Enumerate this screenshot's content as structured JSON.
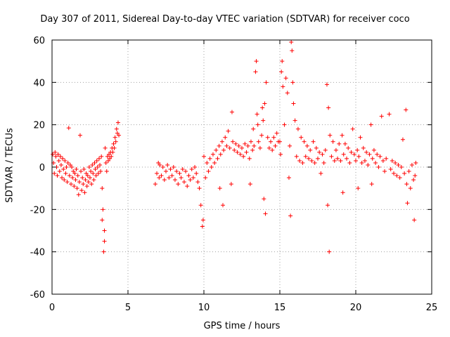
{
  "chart_data": {
    "type": "scatter",
    "title": "Day 307 of 2011, Sidereal Day-to-day VTEC variation (SDTVAR) for receiver coco",
    "xlabel": "GPS time / hours",
    "ylabel": "SDTVAR / TECUs",
    "xlim": [
      0,
      25
    ],
    "ylim": [
      -60,
      60
    ],
    "xticks": [
      0,
      5,
      10,
      15,
      20,
      25
    ],
    "yticks": [
      -60,
      -40,
      -20,
      0,
      20,
      40,
      60
    ],
    "grid": true,
    "marker": "+",
    "color": "#ff0000",
    "series": [
      {
        "name": "SDTVAR",
        "points": [
          [
            0.05,
            6
          ],
          [
            0.1,
            2
          ],
          [
            0.15,
            -3
          ],
          [
            0.2,
            7
          ],
          [
            0.25,
            5
          ],
          [
            0.3,
            0
          ],
          [
            0.35,
            -4
          ],
          [
            0.4,
            6
          ],
          [
            0.45,
            3
          ],
          [
            0.5,
            -2
          ],
          [
            0.55,
            5
          ],
          [
            0.6,
            1
          ],
          [
            0.65,
            -5
          ],
          [
            0.7,
            4
          ],
          [
            0.75,
            -1
          ],
          [
            0.8,
            -6
          ],
          [
            0.85,
            3
          ],
          [
            0.9,
            -3
          ],
          [
            0.95,
            0
          ],
          [
            1.0,
            -7
          ],
          [
            1.05,
            2
          ],
          [
            1.1,
            18.5
          ],
          [
            1.15,
            -4
          ],
          [
            1.2,
            1
          ],
          [
            1.25,
            -8
          ],
          [
            1.3,
            0
          ],
          [
            1.35,
            -5
          ],
          [
            1.4,
            -2
          ],
          [
            1.45,
            -9
          ],
          [
            1.5,
            -3
          ],
          [
            1.55,
            -6
          ],
          [
            1.6,
            -1
          ],
          [
            1.65,
            -10
          ],
          [
            1.7,
            -4
          ],
          [
            1.75,
            -13
          ],
          [
            1.8,
            -7
          ],
          [
            1.85,
            15
          ],
          [
            1.9,
            -2
          ],
          [
            1.95,
            -11
          ],
          [
            2.0,
            -5
          ],
          [
            2.05,
            -8
          ],
          [
            2.1,
            -1
          ],
          [
            2.15,
            -12
          ],
          [
            2.2,
            -6
          ],
          [
            2.25,
            -3
          ],
          [
            2.3,
            -9
          ],
          [
            2.35,
            -4
          ],
          [
            2.4,
            -7
          ],
          [
            2.45,
            0
          ],
          [
            2.5,
            -5
          ],
          [
            2.55,
            -2
          ],
          [
            2.6,
            -8
          ],
          [
            2.65,
            1
          ],
          [
            2.7,
            -3
          ],
          [
            2.75,
            -6
          ],
          [
            2.8,
            2
          ],
          [
            2.85,
            -1
          ],
          [
            2.9,
            -4
          ],
          [
            2.95,
            3
          ],
          [
            3.0,
            0
          ],
          [
            3.05,
            -3
          ],
          [
            3.1,
            4
          ],
          [
            3.15,
            1
          ],
          [
            3.2,
            -2
          ],
          [
            3.25,
            5
          ],
          [
            3.3,
            -10
          ],
          [
            3.35,
            -20
          ],
          [
            3.4,
            -40
          ],
          [
            3.45,
            -30
          ],
          [
            3.5,
            9
          ],
          [
            3.55,
            2
          ],
          [
            3.6,
            -2
          ],
          [
            3.65,
            5
          ],
          [
            3.7,
            3
          ],
          [
            3.75,
            6
          ],
          [
            3.8,
            4
          ],
          [
            3.85,
            7
          ],
          [
            3.9,
            5
          ],
          [
            3.95,
            9
          ],
          [
            4.0,
            7
          ],
          [
            4.05,
            11
          ],
          [
            4.1,
            9
          ],
          [
            4.15,
            14
          ],
          [
            4.2,
            12
          ],
          [
            4.25,
            18
          ],
          [
            4.3,
            16
          ],
          [
            4.35,
            21
          ],
          [
            4.4,
            15
          ],
          [
            3.3,
            -25
          ],
          [
            3.45,
            -35
          ],
          [
            6.8,
            -8
          ],
          [
            6.9,
            -3
          ],
          [
            7.0,
            2
          ],
          [
            7.05,
            -5
          ],
          [
            7.1,
            1
          ],
          [
            7.2,
            -4
          ],
          [
            7.3,
            0
          ],
          [
            7.4,
            -6
          ],
          [
            7.5,
            -2
          ],
          [
            7.6,
            1
          ],
          [
            7.7,
            -5
          ],
          [
            7.8,
            -1
          ],
          [
            7.9,
            -4
          ],
          [
            8.0,
            0
          ],
          [
            8.1,
            -6
          ],
          [
            8.2,
            -2
          ],
          [
            8.3,
            -8
          ],
          [
            8.4,
            -3
          ],
          [
            8.5,
            -5
          ],
          [
            8.6,
            -1
          ],
          [
            8.7,
            -7
          ],
          [
            8.8,
            -2
          ],
          [
            8.9,
            -9
          ],
          [
            9.0,
            -4
          ],
          [
            9.1,
            -6
          ],
          [
            9.2,
            -1
          ],
          [
            9.3,
            -5
          ],
          [
            9.4,
            0
          ],
          [
            9.5,
            -3
          ],
          [
            9.6,
            -7
          ],
          [
            9.7,
            -10
          ],
          [
            9.8,
            -18
          ],
          [
            9.9,
            -28
          ],
          [
            9.95,
            -25
          ],
          [
            10.0,
            5
          ],
          [
            10.1,
            -5
          ],
          [
            10.2,
            2
          ],
          [
            10.3,
            -2
          ],
          [
            10.4,
            4
          ],
          [
            10.5,
            0
          ],
          [
            10.6,
            6
          ],
          [
            10.7,
            2
          ],
          [
            10.8,
            8
          ],
          [
            10.9,
            4
          ],
          [
            11.0,
            10
          ],
          [
            11.05,
            -10
          ],
          [
            11.1,
            6
          ],
          [
            11.2,
            12
          ],
          [
            11.25,
            -18
          ],
          [
            11.3,
            8
          ],
          [
            11.4,
            14
          ],
          [
            11.5,
            10
          ],
          [
            11.6,
            17
          ],
          [
            11.7,
            9
          ],
          [
            11.8,
            -8
          ],
          [
            11.85,
            26
          ],
          [
            11.9,
            12
          ],
          [
            12.0,
            8
          ],
          [
            12.1,
            11
          ],
          [
            12.2,
            7
          ],
          [
            12.3,
            10
          ],
          [
            12.4,
            6
          ],
          [
            12.5,
            9
          ],
          [
            12.6,
            5
          ],
          [
            12.7,
            11
          ],
          [
            12.8,
            7
          ],
          [
            12.9,
            10
          ],
          [
            13.0,
            4
          ],
          [
            13.05,
            -8
          ],
          [
            13.1,
            12
          ],
          [
            13.2,
            8
          ],
          [
            13.25,
            18
          ],
          [
            13.3,
            10
          ],
          [
            13.4,
            45
          ],
          [
            13.45,
            50
          ],
          [
            13.5,
            25
          ],
          [
            13.55,
            20
          ],
          [
            13.6,
            12
          ],
          [
            13.7,
            9
          ],
          [
            13.8,
            15
          ],
          [
            13.85,
            28
          ],
          [
            13.9,
            22
          ],
          [
            13.95,
            -15
          ],
          [
            14.0,
            30
          ],
          [
            14.05,
            -22
          ],
          [
            14.1,
            40
          ],
          [
            14.2,
            14
          ],
          [
            14.3,
            9
          ],
          [
            14.4,
            12
          ],
          [
            14.5,
            8
          ],
          [
            14.6,
            14
          ],
          [
            14.7,
            10
          ],
          [
            14.8,
            16
          ],
          [
            14.9,
            12
          ],
          [
            15.0,
            12
          ],
          [
            15.05,
            6
          ],
          [
            15.1,
            45
          ],
          [
            15.15,
            50
          ],
          [
            15.2,
            38
          ],
          [
            15.3,
            20
          ],
          [
            15.4,
            42
          ],
          [
            15.5,
            35
          ],
          [
            15.6,
            -5
          ],
          [
            15.65,
            10
          ],
          [
            15.7,
            -23
          ],
          [
            15.75,
            59
          ],
          [
            15.8,
            55
          ],
          [
            15.85,
            40
          ],
          [
            15.9,
            30
          ],
          [
            16.0,
            22
          ],
          [
            16.1,
            5
          ],
          [
            16.2,
            18
          ],
          [
            16.3,
            3
          ],
          [
            16.4,
            14
          ],
          [
            16.5,
            2
          ],
          [
            16.6,
            12
          ],
          [
            16.7,
            5
          ],
          [
            16.8,
            10
          ],
          [
            16.9,
            4
          ],
          [
            17.0,
            8
          ],
          [
            17.1,
            3
          ],
          [
            17.2,
            12
          ],
          [
            17.3,
            2
          ],
          [
            17.4,
            9
          ],
          [
            17.5,
            4
          ],
          [
            17.6,
            7
          ],
          [
            17.7,
            -3
          ],
          [
            17.8,
            6
          ],
          [
            17.9,
            2
          ],
          [
            18.0,
            8
          ],
          [
            18.1,
            39
          ],
          [
            18.15,
            -18
          ],
          [
            18.2,
            28
          ],
          [
            18.25,
            -40
          ],
          [
            18.3,
            15
          ],
          [
            18.4,
            5
          ],
          [
            18.5,
            12
          ],
          [
            18.6,
            3
          ],
          [
            18.7,
            8
          ],
          [
            18.8,
            4
          ],
          [
            18.9,
            11
          ],
          [
            19.0,
            3
          ],
          [
            19.1,
            15
          ],
          [
            19.15,
            -12
          ],
          [
            19.2,
            6
          ],
          [
            19.3,
            11
          ],
          [
            19.4,
            4
          ],
          [
            19.5,
            9
          ],
          [
            19.6,
            2
          ],
          [
            19.7,
            7
          ],
          [
            19.8,
            18
          ],
          [
            19.9,
            6
          ],
          [
            20.0,
            3
          ],
          [
            20.1,
            8
          ],
          [
            20.15,
            -10
          ],
          [
            20.2,
            5
          ],
          [
            20.3,
            14
          ],
          [
            20.4,
            2
          ],
          [
            20.5,
            9
          ],
          [
            20.6,
            3
          ],
          [
            20.7,
            7
          ],
          [
            20.8,
            1
          ],
          [
            20.9,
            6
          ],
          [
            21.0,
            20
          ],
          [
            21.05,
            -8
          ],
          [
            21.1,
            4
          ],
          [
            21.2,
            8
          ],
          [
            21.3,
            2
          ],
          [
            21.4,
            6
          ],
          [
            21.5,
            0
          ],
          [
            21.6,
            5
          ],
          [
            21.7,
            24
          ],
          [
            21.8,
            3
          ],
          [
            21.9,
            -2
          ],
          [
            22.0,
            4
          ],
          [
            22.2,
            25
          ],
          [
            22.3,
            -1
          ],
          [
            22.4,
            3
          ],
          [
            22.5,
            -3
          ],
          [
            22.6,
            2
          ],
          [
            22.7,
            -4
          ],
          [
            22.8,
            1
          ],
          [
            22.9,
            -5
          ],
          [
            23.0,
            0
          ],
          [
            23.1,
            13
          ],
          [
            23.2,
            -3
          ],
          [
            23.3,
            27
          ],
          [
            23.35,
            -8
          ],
          [
            23.4,
            -17
          ],
          [
            23.5,
            -2
          ],
          [
            23.6,
            -10
          ],
          [
            23.7,
            1
          ],
          [
            23.8,
            -6
          ],
          [
            23.85,
            -25
          ],
          [
            23.9,
            -4
          ],
          [
            23.95,
            2
          ]
        ]
      }
    ]
  }
}
